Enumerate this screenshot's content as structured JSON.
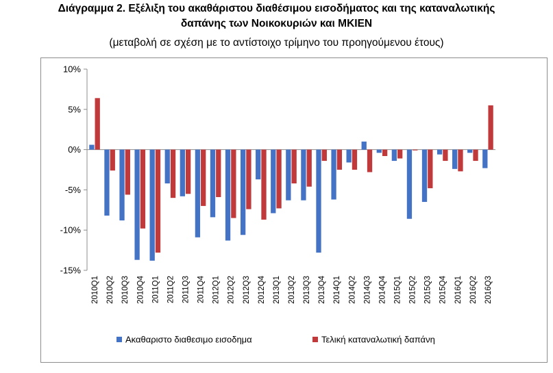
{
  "title_line1": "Διάγραμμα 2. Εξέλιξη του ακαθάριστου διαθέσιμου εισοδήματος και της καταναλωτικής",
  "title_line2": "δαπάνης των Νοικοκυριών και ΜΚΙΕΝ",
  "subtitle": "(μεταβολή σε σχέση με το αντίστοιχο τρίμηνο του προηγούμενου έτους)",
  "chart_data": {
    "type": "bar",
    "title": "Διάγραμμα 2. Εξέλιξη του ακαθάριστου διαθέσιμου εισοδήματος και της καταναλωτικής δαπάνης των Νοικοκυριών και ΜΚΙΕΝ",
    "subtitle": "(μεταβολή σε σχέση με το αντίστοιχο τρίμηνο του προηγούμενου έτους)",
    "categories": [
      "2010Q1",
      "2010Q2",
      "2010Q3",
      "2010Q4",
      "2011Q1",
      "2011Q2",
      "2011Q3",
      "2011Q4",
      "2012Q1",
      "2012Q2",
      "2012Q3",
      "2012Q4",
      "2013Q1",
      "2013Q2",
      "2013Q3",
      "2013Q4",
      "2014Q1",
      "2014Q2",
      "2014Q3",
      "2014Q4",
      "2015Q1",
      "2015Q2",
      "2015Q3",
      "2015Q4",
      "2016Q1",
      "2016Q2",
      "2016Q3"
    ],
    "series": [
      {
        "name": "Ακαθαριστο διαθεσιμο εισοδημα",
        "color": "#4472c4",
        "values": [
          0.6,
          -8.2,
          -8.8,
          -13.7,
          -13.8,
          -4.2,
          -5.8,
          -10.9,
          -8.4,
          -11.3,
          -10.6,
          -3.7,
          -7.9,
          -6.3,
          -6.3,
          -12.8,
          -6.2,
          -1.6,
          1.0,
          -0.4,
          -1.4,
          -8.6,
          -6.5,
          -0.6,
          -2.4,
          -0.4,
          -2.3
        ]
      },
      {
        "name": "Τελική καταναλωτική δαπάνη",
        "color": "#c0393b",
        "values": [
          6.4,
          -2.6,
          -5.6,
          -9.8,
          -12.8,
          -6.0,
          -5.5,
          -7.0,
          -5.9,
          -8.5,
          -7.4,
          -8.7,
          -7.3,
          -4.2,
          -4.6,
          -1.4,
          -2.5,
          -2.5,
          -2.8,
          -0.8,
          -1.1,
          -0.1,
          -4.8,
          -1.4,
          -2.7,
          -1.4,
          5.5
        ]
      }
    ],
    "yticks": [
      "10%",
      "5%",
      "0%",
      "-5%",
      "-10%",
      "-15%"
    ],
    "ylim": [
      -15,
      10
    ],
    "ytick_step": 5,
    "grid": false,
    "legend_position": "bottom"
  }
}
